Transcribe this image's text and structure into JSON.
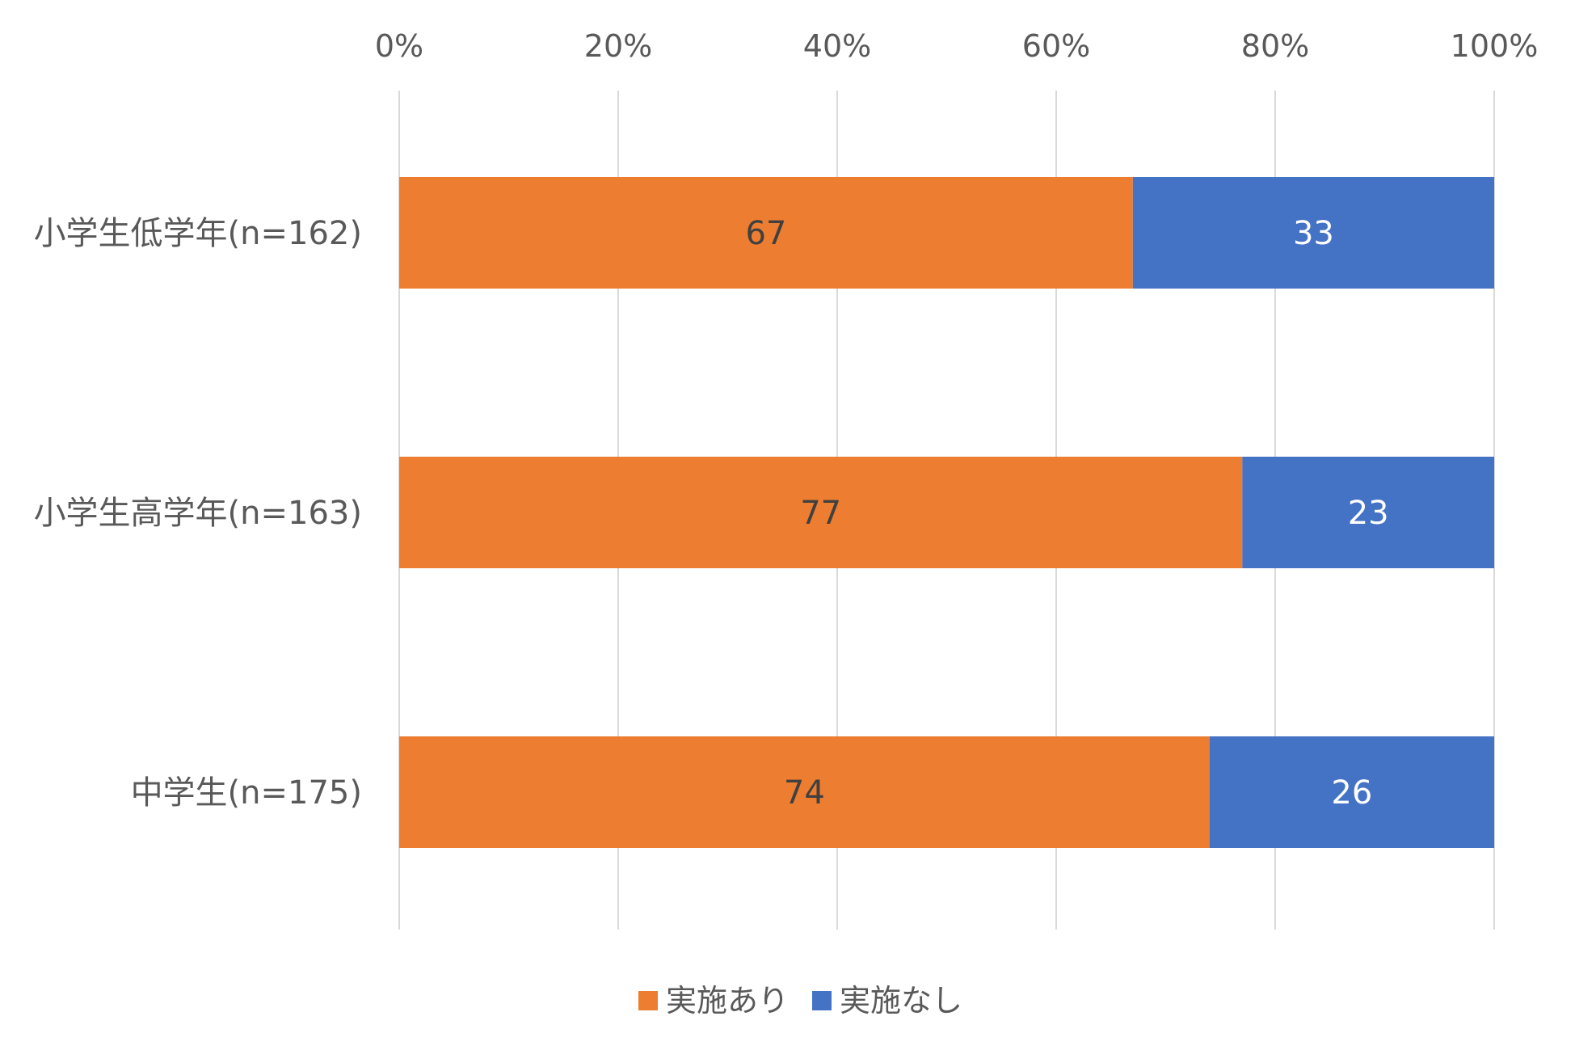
{
  "chart_data": {
    "type": "bar",
    "orientation": "horizontal",
    "stacked": "percent",
    "categories": [
      "小学生低学年(n=162)",
      "小学生高学年(n=163)",
      "中学生(n=175)"
    ],
    "series": [
      {
        "name": "実施あり",
        "color": "#ED7D31",
        "label_color": "#404040",
        "values": [
          67,
          77,
          74
        ]
      },
      {
        "name": "実施なし",
        "color": "#4472C4",
        "label_color": "#FFFFFF",
        "values": [
          33,
          23,
          26
        ]
      }
    ],
    "x_ticks": [
      "0%",
      "20%",
      "40%",
      "60%",
      "80%",
      "100%"
    ],
    "xlim": [
      0,
      100
    ],
    "x_axis_position": "top",
    "grid": true,
    "grid_color": "#D9D9D9",
    "legend_position": "bottom"
  }
}
